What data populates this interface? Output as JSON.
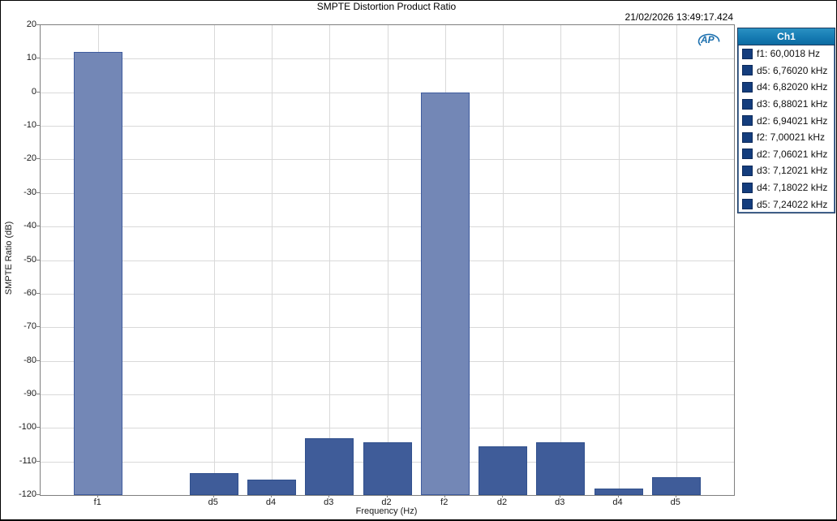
{
  "window": {
    "title": "SMPTE Distortion Product Ratio",
    "timestamp": "21/02/2026 13:49:17.424"
  },
  "chart_data": {
    "type": "bar",
    "title": "SMPTE Distortion Product Ratio",
    "xlabel": "Frequency (Hz)",
    "ylabel": "SMPTE Ratio (dB)",
    "ylim": [
      -120,
      20
    ],
    "ytick_step": 10,
    "grid": true,
    "legend_position": "outside-top-right",
    "num_slots": 12,
    "bars": [
      {
        "label": "f1",
        "slot": 1,
        "value_db": 12.0,
        "kind": "fundamental"
      },
      {
        "label": "d5",
        "slot": 3,
        "value_db": -113.5,
        "kind": "distortion"
      },
      {
        "label": "d4",
        "slot": 4,
        "value_db": -115.5,
        "kind": "distortion"
      },
      {
        "label": "d3",
        "slot": 5,
        "value_db": -103.0,
        "kind": "distortion"
      },
      {
        "label": "d2",
        "slot": 6,
        "value_db": -104.3,
        "kind": "distortion"
      },
      {
        "label": "f2",
        "slot": 7,
        "value_db": 0.0,
        "kind": "fundamental"
      },
      {
        "label": "d2",
        "slot": 8,
        "value_db": -105.5,
        "kind": "distortion"
      },
      {
        "label": "d3",
        "slot": 9,
        "value_db": -104.3,
        "kind": "distortion"
      },
      {
        "label": "d4",
        "slot": 10,
        "value_db": -118.0,
        "kind": "distortion"
      },
      {
        "label": "d5",
        "slot": 11,
        "value_db": -114.8,
        "kind": "distortion"
      }
    ],
    "colors": {
      "fundamental_fill": "#7387b6",
      "fundamental_border": "#3f5c9f",
      "distortion_fill": "#3f5c99",
      "distortion_border": "#31508d",
      "grid": "#d9d9d9",
      "plot_border": "#7f7f7f"
    }
  },
  "legend": {
    "header": "Ch1",
    "header_bg": "#1479b1",
    "marker_color": "#143d7d",
    "entries": [
      "f1: 60,0018 Hz",
      "d5: 6,76020 kHz",
      "d4: 6,82020 kHz",
      "d3: 6,88021 kHz",
      "d2: 6,94021 kHz",
      "f2: 7,00021 kHz",
      "d2: 7,06021 kHz",
      "d3: 7,12021 kHz",
      "d4: 7,18022 kHz",
      "d5: 7,24022 kHz"
    ]
  },
  "logo": {
    "text": "AP",
    "color": "#1b6fae"
  }
}
